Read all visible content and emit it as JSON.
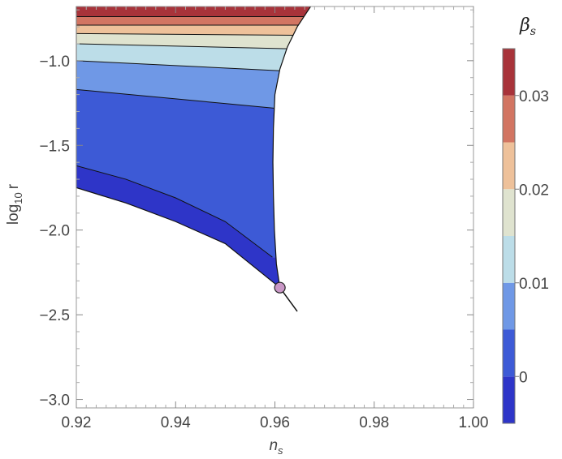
{
  "chart_data": {
    "type": "contour",
    "xlabel_main": "n",
    "xlabel_sub": "s",
    "ylabel_main": "log",
    "ylabel_sub": "10",
    "ylabel_var": "r",
    "xlim": [
      0.92,
      1.0
    ],
    "ylim": [
      -3.05,
      -0.68
    ],
    "x_ticks": [
      0.92,
      0.94,
      0.96,
      0.98,
      1.0
    ],
    "x_tick_labels": [
      "0.92",
      "0.94",
      "0.96",
      "0.98",
      "1.00"
    ],
    "y_ticks": [
      -1.0,
      -1.5,
      -2.0,
      -2.5,
      -3.0
    ],
    "y_tick_labels": [
      "−1.0",
      "−1.5",
      "−2.0",
      "−2.5",
      "−3.0"
    ],
    "legend": {
      "title_main": "β",
      "title_sub": "s",
      "range": [
        -0.005,
        0.035
      ],
      "levels": [
        -0.005,
        0.0,
        0.005,
        0.01,
        0.015,
        0.02,
        0.025,
        0.03,
        0.035
      ],
      "colors": [
        "#2e35c8",
        "#3d5ad6",
        "#6f98e6",
        "#bcdde8",
        "#dfe3cf",
        "#eec19a",
        "#d27562",
        "#a8333a"
      ],
      "tick_values": [
        0.0,
        0.01,
        0.02,
        0.03
      ],
      "tick_labels": [
        "0",
        "0.01",
        "0.02",
        "0.03"
      ]
    },
    "region": {
      "left_x": 0.92,
      "top_edge": [
        [
          0.92,
          -0.68
        ],
        [
          0.9672,
          -0.68
        ]
      ],
      "right_edge": [
        [
          0.9672,
          -0.68
        ],
        [
          0.9645,
          -0.8
        ],
        [
          0.9625,
          -0.92
        ],
        [
          0.961,
          -1.05
        ],
        [
          0.96,
          -1.2
        ],
        [
          0.9597,
          -1.4
        ],
        [
          0.9596,
          -1.6
        ],
        [
          0.9597,
          -1.8
        ],
        [
          0.9599,
          -2.0
        ],
        [
          0.9603,
          -2.2
        ],
        [
          0.961,
          -2.34
        ]
      ],
      "bottom_edge": [
        [
          0.92,
          -1.75
        ],
        [
          0.93,
          -1.84
        ],
        [
          0.94,
          -1.95
        ],
        [
          0.95,
          -2.08
        ],
        [
          0.961,
          -2.34
        ]
      ],
      "contours": [
        {
          "value": 0.0,
          "points": [
            [
              0.92,
              -1.62
            ],
            [
              0.93,
              -1.7
            ],
            [
              0.94,
              -1.81
            ],
            [
              0.95,
              -1.95
            ],
            [
              0.9595,
              -2.16
            ]
          ]
        },
        {
          "value": 0.005,
          "points": [
            [
              0.92,
              -1.17
            ],
            [
              0.9598,
              -1.28
            ]
          ]
        },
        {
          "value": 0.01,
          "points": [
            [
              0.92,
              -1.0
            ],
            [
              0.9615,
              -1.06
            ]
          ]
        },
        {
          "value": 0.015,
          "points": [
            [
              0.92,
              -0.9
            ],
            [
              0.9635,
              -0.93
            ]
          ]
        },
        {
          "value": 0.02,
          "points": [
            [
              0.92,
              -0.84
            ],
            [
              0.9648,
              -0.85
            ]
          ]
        },
        {
          "value": 0.025,
          "points": [
            [
              0.92,
              -0.79
            ],
            [
              0.9657,
              -0.79
            ]
          ]
        },
        {
          "value": 0.03,
          "points": [
            [
              0.92,
              -0.74
            ],
            [
              0.9665,
              -0.74
            ]
          ]
        }
      ]
    },
    "line": [
      [
        0.961,
        -2.34
      ],
      [
        0.9645,
        -2.48
      ]
    ],
    "marker": {
      "x": 0.961,
      "y": -2.34,
      "color": "#c997c6"
    }
  }
}
